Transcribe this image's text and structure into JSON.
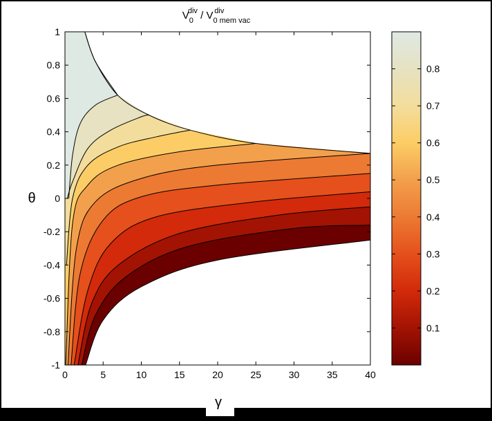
{
  "chart_data": {
    "type": "contour",
    "title": {
      "numerator": "V",
      "numerator_sup": "div",
      "numerator_sub": "0",
      "separator": " / ",
      "denominator": "V",
      "denominator_sup": "div",
      "denominator_sub": "0 mem vac"
    },
    "xlabel": "γ",
    "ylabel": "θ",
    "xlim": [
      0,
      40
    ],
    "ylim": [
      -1,
      1
    ],
    "x_ticks": [
      "0",
      "5",
      "10",
      "15",
      "20",
      "25",
      "30",
      "35",
      "40"
    ],
    "y_ticks": [
      "1",
      "0.8",
      "0.6",
      "0.4",
      "0.2",
      "0",
      "-0.2",
      "-0.4",
      "-0.6",
      "-0.8",
      "-1"
    ],
    "colorbar": {
      "range": [
        0,
        0.9
      ],
      "ticks": [
        "0.8",
        "0.7",
        "0.6",
        "0.5",
        "0.4",
        "0.3",
        "0.2",
        "0.1"
      ],
      "colors": [
        "#6b0000",
        "#a21303",
        "#d22a0a",
        "#e5501c",
        "#ec7a33",
        "#f3a04c",
        "#fccd66",
        "#f3dd9d",
        "#e6e2c2",
        "#dfe9e3"
      ]
    },
    "levels": [
      0.1,
      0.2,
      0.3,
      0.4,
      0.5,
      0.6,
      0.7,
      0.8,
      0.9
    ],
    "contours": [
      {
        "level": 0.9,
        "points": [
          [
            2.6,
            1
          ],
          [
            4,
            0.82
          ],
          [
            6.9,
            0.62
          ]
        ]
      },
      {
        "level": 0.8,
        "points": [
          [
            0.5,
            0
          ],
          [
            1,
            0.26
          ],
          [
            2,
            0.45
          ],
          [
            4,
            0.56
          ],
          [
            6.9,
            0.62
          ]
        ]
      },
      {
        "level": 0.7,
        "points": [
          [
            0.3,
            0
          ],
          [
            1,
            0.1
          ],
          [
            3,
            0.3
          ],
          [
            6,
            0.41
          ],
          [
            10,
            0.49
          ],
          [
            11,
            0.5
          ]
        ]
      },
      {
        "level": 0.6,
        "points": [
          [
            0.2,
            -0.4
          ],
          [
            1,
            0
          ],
          [
            3,
            0.2
          ],
          [
            7,
            0.31
          ],
          [
            12,
            0.37
          ],
          [
            16.4,
            0.41
          ]
        ]
      },
      {
        "level": 0.5,
        "points": [
          [
            0.1,
            -1
          ],
          [
            1,
            -0.15
          ],
          [
            3,
            0.08
          ],
          [
            7,
            0.2
          ],
          [
            15,
            0.28
          ],
          [
            25,
            0.33
          ]
        ]
      },
      {
        "level": 0.4,
        "points": [
          [
            0.4,
            -1
          ],
          [
            1.5,
            -0.3
          ],
          [
            4,
            -0.02
          ],
          [
            10,
            0.12
          ],
          [
            20,
            0.2
          ],
          [
            40,
            0.27
          ]
        ]
      },
      {
        "level": 0.3,
        "points": [
          [
            0.8,
            -1
          ],
          [
            2,
            -0.45
          ],
          [
            5,
            -0.13
          ],
          [
            10,
            0.01
          ],
          [
            20,
            0.08
          ],
          [
            40,
            0.15
          ]
        ]
      },
      {
        "level": 0.2,
        "points": [
          [
            1.2,
            -1
          ],
          [
            3,
            -0.55
          ],
          [
            6,
            -0.27
          ],
          [
            12,
            -0.11
          ],
          [
            25,
            -0.02
          ],
          [
            40,
            0.04
          ]
        ]
      },
      {
        "level": 0.1,
        "points": [
          [
            1.7,
            -1
          ],
          [
            3.5,
            -0.63
          ],
          [
            7,
            -0.4
          ],
          [
            15,
            -0.21
          ],
          [
            28,
            -0.1
          ],
          [
            40,
            -0.05
          ]
        ]
      },
      {
        "level": 0.05,
        "points": [
          [
            2.2,
            -1
          ],
          [
            4,
            -0.7
          ],
          [
            8,
            -0.47
          ],
          [
            16,
            -0.29
          ],
          [
            30,
            -0.18
          ],
          [
            40,
            -0.16
          ]
        ]
      },
      {
        "level": 0.0,
        "points": [
          [
            2.7,
            -1
          ],
          [
            5,
            -0.73
          ],
          [
            10,
            -0.53
          ],
          [
            20,
            -0.37
          ],
          [
            40,
            -0.25
          ]
        ]
      }
    ]
  }
}
